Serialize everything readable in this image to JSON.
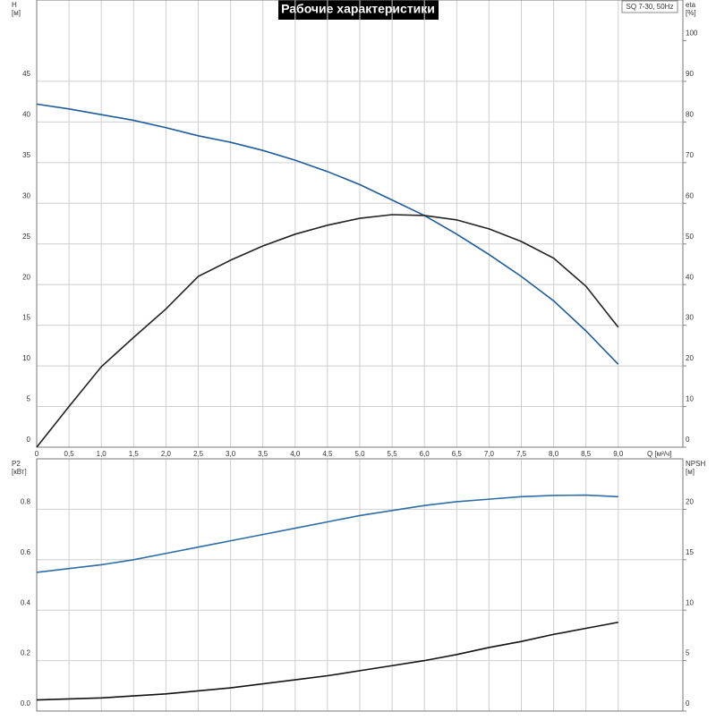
{
  "chart_data": [
    {
      "type": "line",
      "title": "Рабочие характеристики",
      "subtitle": "SQ 7-30, 50Hz",
      "x_label": "Q [м³/ч]",
      "y_label": [
        "H",
        "[м]"
      ],
      "y2_label": [
        "eta",
        "[%]"
      ],
      "x": [
        0,
        0.5,
        1,
        1.5,
        2,
        2.5,
        3,
        3.5,
        4,
        4.5,
        5,
        5.5,
        6,
        6.5,
        7,
        7.5,
        8,
        8.5,
        9
      ],
      "xlim": [
        0,
        10
      ],
      "xticks": [
        0,
        {
          "value": 0.5,
          "label": "0,5"
        },
        {
          "value": 1,
          "label": "1,0"
        },
        {
          "value": 1.5,
          "label": "1,5"
        },
        {
          "value": 2,
          "label": "2,0"
        },
        {
          "value": 2.5,
          "label": "2,5"
        },
        {
          "value": 3,
          "label": "3,0"
        },
        {
          "value": 3.5,
          "label": "3,5"
        },
        {
          "value": 4,
          "label": "4,0"
        },
        {
          "value": 4.5,
          "label": "4,5"
        },
        {
          "value": 5,
          "label": "5,0"
        },
        {
          "value": 5.5,
          "label": "5,5"
        },
        {
          "value": 6,
          "label": "6,0"
        },
        {
          "value": 6.5,
          "label": "6,5"
        },
        {
          "value": 7,
          "label": "7,0"
        },
        {
          "value": 7.5,
          "label": "7,5"
        },
        {
          "value": 8,
          "label": "8,0"
        },
        {
          "value": 8.5,
          "label": "8,5"
        },
        {
          "value": 9,
          "label": "9,0"
        }
      ],
      "ylim": [
        0,
        55
      ],
      "yticks": [
        0,
        5,
        10,
        15,
        20,
        25,
        30,
        35,
        40,
        45
      ],
      "y2lim": [
        0,
        110
      ],
      "y2ticks": [
        0,
        10,
        20,
        30,
        40,
        50,
        60,
        70,
        80,
        90,
        100
      ],
      "grid": true,
      "series": [
        {
          "name": "H",
          "color": "#1f5b99",
          "values": [
            42.2,
            41.6,
            40.9,
            40.2,
            39.3,
            38.3,
            37.5,
            36.5,
            35.3,
            33.9,
            32.3,
            30.4,
            28.5,
            26.2,
            23.7,
            21.0,
            18.0,
            14.3,
            10.2
          ]
        },
        {
          "name": "eta",
          "color": "#222222",
          "axis": "y2",
          "values": [
            0,
            10,
            19.8,
            27,
            34,
            42,
            46,
            49.5,
            52.4,
            54.6,
            56.3,
            57.2,
            57,
            55.9,
            53.7,
            50.6,
            46.5,
            39.6,
            29.5
          ]
        }
      ]
    },
    {
      "type": "line",
      "y_label": [
        "P2",
        "[кВт]"
      ],
      "y2_label": [
        "NPSH",
        "[м]"
      ],
      "x": [
        0,
        0.5,
        1,
        1.5,
        2,
        2.5,
        3,
        3.5,
        4,
        4.5,
        5,
        5.5,
        6,
        6.5,
        7,
        7.5,
        8,
        8.5,
        9
      ],
      "xlim": [
        0,
        10
      ],
      "ylim": [
        0,
        1.0
      ],
      "yticks": [
        {
          "value": 0,
          "label": "0.0"
        },
        0.2,
        0.4,
        0.6,
        0.8
      ],
      "y2lim": [
        0,
        25
      ],
      "y2ticks": [
        0,
        5,
        10,
        15,
        20
      ],
      "grid": true,
      "series": [
        {
          "name": "P2",
          "color": "#2e6da4",
          "values": [
            0.55,
            0.565,
            0.58,
            0.6,
            0.625,
            0.65,
            0.675,
            0.7,
            0.725,
            0.75,
            0.775,
            0.795,
            0.815,
            0.83,
            0.84,
            0.85,
            0.855,
            0.856,
            0.85
          ]
        },
        {
          "name": "NPSH",
          "color": "#111111",
          "axis": "y2",
          "values": [
            1.1,
            1.2,
            1.3,
            1.5,
            1.7,
            2.0,
            2.3,
            2.7,
            3.1,
            3.5,
            4.0,
            4.5,
            5.0,
            5.6,
            6.3,
            6.9,
            7.6,
            8.2,
            8.8
          ]
        }
      ]
    }
  ]
}
